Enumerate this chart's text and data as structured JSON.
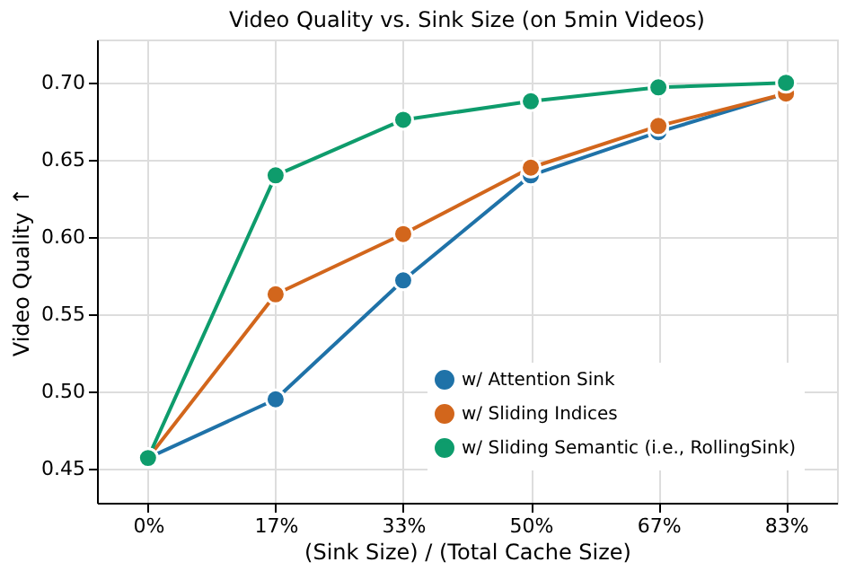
{
  "chart_data": {
    "type": "line",
    "title": "Video Quality vs. Sink Size (on 5min Videos)",
    "xlabel": "(Sink Size) / (Total Cache Size)",
    "ylabel": "Video Quality ↑",
    "categories": [
      "0%",
      "17%",
      "33%",
      "50%",
      "67%",
      "83%"
    ],
    "series": [
      {
        "name": "w/ Attention Sink",
        "color": "#1f72a8",
        "values": [
          0.457,
          0.495,
          0.572,
          0.64,
          0.668,
          0.693
        ]
      },
      {
        "name": "w/ Sliding Indices",
        "color": "#d2661c",
        "values": [
          0.457,
          0.563,
          0.602,
          0.645,
          0.672,
          0.693
        ]
      },
      {
        "name": "w/ Sliding Semantic (i.e., RollingSink)",
        "color": "#0e9c6c",
        "values": [
          0.457,
          0.64,
          0.676,
          0.688,
          0.697,
          0.7
        ]
      }
    ],
    "ylim": [
      0.428,
      0.728
    ],
    "yticks": [
      0.45,
      {
        "value": 0.5,
        "label": "0.50"
      },
      0.55,
      {
        "value": 0.6,
        "label": "0.60"
      },
      0.65,
      {
        "value": 0.7,
        "label": "0.70"
      }
    ],
    "grid": true,
    "legend": "bottom right",
    "marker": "circle",
    "line_style": "solid"
  }
}
